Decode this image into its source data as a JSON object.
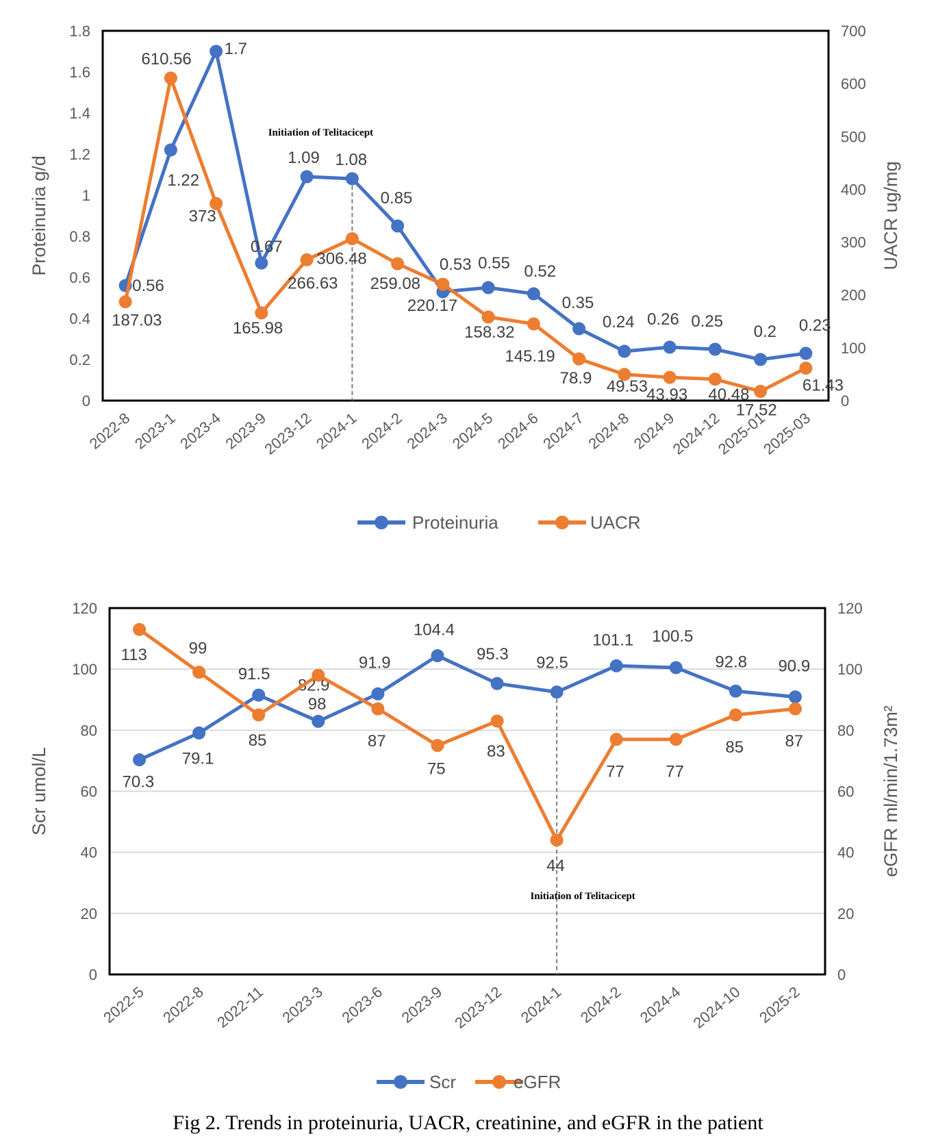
{
  "caption": "Fig 2. Trends in proteinuria, UACR, creatinine, and eGFR in the patient",
  "colors": {
    "blue": "#4472C4",
    "orange": "#ED7D31",
    "axis": "#000000",
    "grid": "#D9D9D9",
    "text": "#595959"
  },
  "chart_data": [
    {
      "type": "line",
      "categories": [
        "2022-8",
        "2023-1",
        "2023-4",
        "2023-9",
        "2023-12",
        "2024-1",
        "2024-2",
        "2024-3",
        "2024-5",
        "2024-6",
        "2024-7",
        "2024-8",
        "2024-9",
        "2024-12",
        "2025-01",
        "2025-03"
      ],
      "y_left": {
        "label": "Proteinuria   g/d",
        "range": [
          0,
          1.8
        ],
        "ticks": [
          "0",
          "0.2",
          "0.4",
          "0.6",
          "0.8",
          "1",
          "1.2",
          "1.4",
          "1.6",
          "1.8"
        ]
      },
      "y_right": {
        "label": "UACR ug/mg",
        "range": [
          0,
          700
        ],
        "ticks": [
          "0",
          "100",
          "200",
          "300",
          "400",
          "500",
          "600",
          "700"
        ]
      },
      "grid": false,
      "series": [
        {
          "name": "Proteinuria",
          "axis": "left",
          "color": "#4472C4",
          "values": [
            0.56,
            1.22,
            1.7,
            0.67,
            1.09,
            1.08,
            0.85,
            0.53,
            0.55,
            0.52,
            0.35,
            0.24,
            0.26,
            0.25,
            0.2,
            0.23
          ],
          "labels": [
            "0.56",
            "1.22",
            "1.7",
            "0.67",
            "1.09",
            "1.08",
            "0.85",
            "0.53",
            "0.55",
            "0.52",
            "0.35",
            "0.24",
            "0.26",
            "0.25",
            "0.2",
            "0.23"
          ]
        },
        {
          "name": "UACR",
          "axis": "right",
          "color": "#ED7D31",
          "values": [
            187.03,
            610.56,
            373,
            165.98,
            266.63,
            306.48,
            259.08,
            220.17,
            158.32,
            145.19,
            78.9,
            49.53,
            43.93,
            40.48,
            17.52,
            61.43
          ],
          "labels": [
            "187.03",
            "610.56",
            "373",
            "165.98",
            "266.63",
            "306.48",
            "259.08",
            "220.17",
            "158.32",
            "145.19",
            "78.9",
            "49.53",
            "43.93",
            "40.48",
            "17.52",
            "61.43"
          ]
        }
      ],
      "annotation": {
        "text": "Initiation of Telitacicept",
        "category": "2024-1"
      },
      "legend": "bottom"
    },
    {
      "type": "line",
      "categories": [
        "2022-5",
        "2022-8",
        "2022-11",
        "2023-3",
        "2023-6",
        "2023-9",
        "2023-12",
        "2024-1",
        "2024-2",
        "2024-4",
        "2024-10",
        "2025-2"
      ],
      "y_left": {
        "label": "Scr  umol/L",
        "range": [
          0,
          120
        ],
        "ticks": [
          "0",
          "20",
          "40",
          "60",
          "80",
          "100",
          "120"
        ]
      },
      "y_right": {
        "label": "eGFR  ml/min/1.73m²",
        "range": [
          0,
          120
        ],
        "ticks": [
          "0",
          "20",
          "40",
          "60",
          "80",
          "100",
          "120"
        ]
      },
      "grid": true,
      "series": [
        {
          "name": "Scr",
          "axis": "left",
          "color": "#4472C4",
          "values": [
            70.3,
            79.1,
            91.5,
            82.9,
            91.9,
            104.4,
            95.3,
            92.5,
            101.1,
            100.5,
            92.8,
            90.9
          ],
          "labels": [
            "70.3",
            "79.1",
            "91.5",
            "82.9",
            "91.9",
            "104.4",
            "95.3",
            "92.5",
            "101.1",
            "100.5",
            "92.8",
            "90.9"
          ]
        },
        {
          "name": "eGFR",
          "axis": "right",
          "color": "#ED7D31",
          "values": [
            113,
            99,
            85,
            98,
            87,
            75,
            83,
            44,
            77,
            77,
            85,
            87
          ],
          "labels": [
            "113",
            "99",
            "85",
            "98",
            "87",
            "75",
            "83",
            "44",
            "77",
            "77",
            "85",
            "87"
          ]
        }
      ],
      "annotation": {
        "text": "Initiation of Telitacicept",
        "category": "2024-1"
      },
      "legend": "bottom"
    }
  ]
}
